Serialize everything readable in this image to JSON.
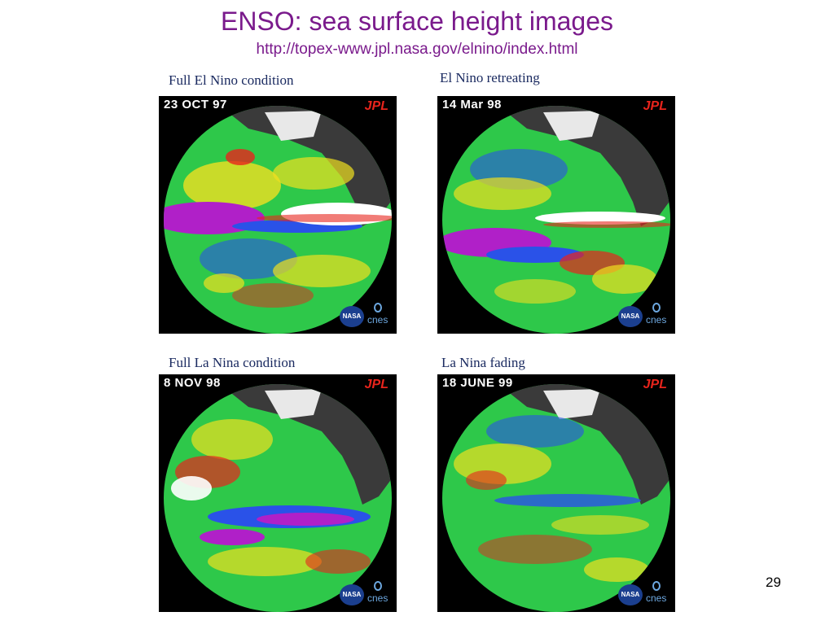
{
  "slide": {
    "title": "ENSO: sea surface height images",
    "url": "http://topex-www.jpl.nasa.gov/elnino/index.html",
    "page_number": "29"
  },
  "panels": [
    {
      "caption": "Full El Nino condition",
      "date": "23 OCT 97",
      "jpl": "JPL",
      "nasa": "NASA",
      "cnes": "cnes",
      "image_subject": "globe-sea-surface-height-el-nino-full"
    },
    {
      "caption": "El Nino retreating",
      "date": "14 Mar 98",
      "jpl": "JPL",
      "nasa": "NASA",
      "cnes": "cnes",
      "image_subject": "globe-sea-surface-height-el-nino-retreating"
    },
    {
      "caption": "Full La Nina condition",
      "date": "8 NOV 98",
      "jpl": "JPL",
      "nasa": "NASA",
      "cnes": "cnes",
      "image_subject": "globe-sea-surface-height-la-nina-full"
    },
    {
      "caption": "La Nina fading",
      "date": "18 JUNE 99",
      "jpl": "JPL",
      "nasa": "NASA",
      "cnes": "cnes",
      "image_subject": "globe-sea-surface-height-la-nina-fading"
    }
  ],
  "colors": {
    "title": "#7a1a8c",
    "caption": "#1a2a60",
    "land": "#3a3a3a",
    "ocean_neutral": "#2ec84a",
    "warm": "#f0e020",
    "hot": "#e8241c",
    "hottest": "#ffffff",
    "cool": "#2a52e8",
    "coldest": "#b020c8",
    "jpl_logo": "#e8241c"
  }
}
